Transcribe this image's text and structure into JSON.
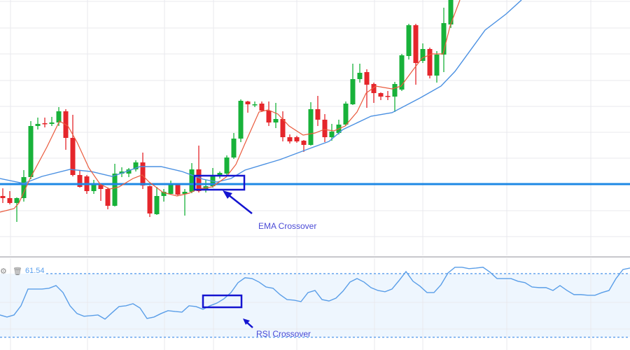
{
  "chart_data": [
    {
      "type": "candlestick",
      "title": "",
      "xlabel": "",
      "ylabel": "",
      "ylim": [
        35,
        400
      ],
      "grid": true,
      "colors": {
        "up": "#18b23a",
        "down": "#e5262b",
        "ema_fast": "#ea5a3c",
        "ema_slow": "#4a90e2",
        "support": "#1e88e5",
        "annotation": "#1414d0"
      },
      "candles": [
        [
          120,
          131,
          110,
          117
        ],
        [
          117,
          127,
          108,
          110
        ],
        [
          110,
          118,
          83,
          117
        ],
        [
          117,
          157,
          112,
          147
        ],
        [
          147,
          227,
          144,
          220
        ],
        [
          220,
          232,
          215,
          223
        ],
        [
          224,
          232,
          218,
          223
        ],
        [
          223,
          233,
          220,
          225
        ],
        [
          225,
          247,
          220,
          241
        ],
        [
          241,
          244,
          186,
          203
        ],
        [
          203,
          236,
          148,
          150
        ],
        [
          150,
          156,
          132,
          133
        ],
        [
          148,
          150,
          123,
          127
        ],
        [
          127,
          143,
          123,
          136
        ],
        [
          136,
          138,
          113,
          130
        ],
        [
          130,
          132,
          101,
          106
        ],
        [
          106,
          166,
          105,
          152
        ],
        [
          152,
          161,
          147,
          155
        ],
        [
          152,
          160,
          147,
          158
        ],
        [
          158,
          171,
          155,
          168
        ],
        [
          168,
          182,
          130,
          135
        ],
        [
          134,
          135,
          90,
          95
        ],
        [
          94,
          133,
          93,
          120
        ],
        [
          120,
          130,
          112,
          126
        ],
        [
          123,
          142,
          122,
          136
        ],
        [
          136,
          137,
          120,
          122
        ],
        [
          123,
          130,
          92,
          126
        ],
        [
          126,
          167,
          124,
          158
        ],
        [
          158,
          192,
          125,
          127
        ],
        [
          128,
          143,
          125,
          134
        ],
        [
          134,
          160,
          132,
          148
        ],
        [
          148,
          155,
          145,
          153
        ],
        [
          152,
          178,
          150,
          175
        ],
        [
          175,
          210,
          173,
          202
        ],
        [
          202,
          258,
          197,
          256
        ],
        [
          255,
          256,
          239,
          251
        ],
        [
          250,
          255,
          247,
          251
        ],
        [
          252,
          255,
          240,
          242
        ],
        [
          242,
          255,
          220,
          225
        ],
        [
          225,
          253,
          217,
          230
        ],
        [
          230,
          241,
          198,
          204
        ],
        [
          204,
          208,
          195,
          198
        ],
        [
          204,
          206,
          196,
          198
        ],
        [
          199,
          200,
          183,
          193
        ],
        [
          193,
          254,
          192,
          244
        ],
        [
          244,
          263,
          220,
          229
        ],
        [
          229,
          237,
          197,
          204
        ],
        [
          204,
          223,
          199,
          212
        ],
        [
          210,
          229,
          208,
          222
        ],
        [
          222,
          255,
          220,
          252
        ],
        [
          251,
          309,
          250,
          287
        ],
        [
          287,
          309,
          282,
          296
        ],
        [
          297,
          301,
          246,
          279
        ],
        [
          280,
          282,
          253,
          267
        ],
        [
          267,
          268,
          257,
          262
        ],
        [
          263,
          270,
          257,
          262
        ],
        [
          262,
          283,
          240,
          280
        ],
        [
          272,
          323,
          270,
          321
        ],
        [
          320,
          366,
          315,
          364
        ],
        [
          364,
          366,
          279,
          310
        ],
        [
          313,
          338,
          310,
          330
        ],
        [
          330,
          332,
          288,
          292
        ],
        [
          292,
          327,
          282,
          322
        ],
        [
          322,
          389,
          297,
          367
        ],
        [
          365,
          420,
          360,
          410
        ]
      ],
      "ema_fast": [
        [
          -0.4,
          97
        ],
        [
          1.6,
          102
        ],
        [
          2.3,
          110
        ],
        [
          3.9,
          145
        ],
        [
          6.3,
          190
        ],
        [
          8.1,
          227
        ],
        [
          9.3,
          220
        ],
        [
          10.6,
          197
        ],
        [
          12.3,
          160
        ],
        [
          13.9,
          137
        ],
        [
          15.3,
          130
        ],
        [
          16.6,
          133
        ],
        [
          18.6,
          145
        ],
        [
          19.9,
          150
        ],
        [
          20.9,
          140
        ],
        [
          22.9,
          125
        ],
        [
          24.9,
          120
        ],
        [
          26.6,
          124
        ],
        [
          27.9,
          130
        ],
        [
          29.9,
          133
        ],
        [
          31.9,
          147
        ],
        [
          33.3,
          165
        ],
        [
          34.6,
          195
        ],
        [
          36.6,
          240
        ],
        [
          37.9,
          243
        ],
        [
          39.3,
          237
        ],
        [
          40.9,
          220
        ],
        [
          42.9,
          207
        ],
        [
          44.6,
          210
        ],
        [
          45.9,
          215
        ],
        [
          47.3,
          213
        ],
        [
          48.9,
          220
        ],
        [
          50.6,
          240
        ],
        [
          51.9,
          267
        ],
        [
          53.3,
          277
        ],
        [
          55.6,
          273
        ],
        [
          56.9,
          277
        ],
        [
          58.6,
          300
        ],
        [
          59.9,
          317
        ],
        [
          61.3,
          323
        ],
        [
          62.9,
          323
        ],
        [
          63.9,
          363
        ],
        [
          65.3,
          400
        ]
      ],
      "ema_slow": [
        [
          -0.4,
          145
        ],
        [
          3,
          138
        ],
        [
          5.6,
          148
        ],
        [
          9.6,
          158
        ],
        [
          12.6,
          155
        ],
        [
          15.6,
          148
        ],
        [
          17.1,
          153
        ],
        [
          19.6,
          162
        ],
        [
          22.6,
          162
        ],
        [
          25.6,
          155
        ],
        [
          28.6,
          144
        ],
        [
          30.6,
          140
        ],
        [
          32.6,
          145
        ],
        [
          34.6,
          157
        ],
        [
          39.6,
          172
        ],
        [
          43.6,
          187
        ],
        [
          46.6,
          198
        ],
        [
          48.6,
          215
        ],
        [
          52.6,
          234
        ],
        [
          55.6,
          239
        ],
        [
          59.6,
          260
        ],
        [
          62.6,
          277
        ],
        [
          64.6,
          298
        ],
        [
          68.9,
          357
        ],
        [
          71.9,
          380
        ],
        [
          74.1,
          400
        ]
      ],
      "support_level": 137,
      "annotations": {
        "ema_box": {
          "bars": [
            27.4,
            34.5
          ],
          "prices": [
            129,
            149
          ]
        }
      }
    },
    {
      "type": "line",
      "title": "",
      "ylim": [
        22,
        80.5
      ],
      "levels": [
        70,
        30
      ],
      "level_label": "61.54",
      "values": [
        44.0,
        42.7,
        44.0,
        49.8,
        60.3,
        60.3,
        60.3,
        60.8,
        62.5,
        58.1,
        49.8,
        44.9,
        43.2,
        43.6,
        44.0,
        41.4,
        45.4,
        49.3,
        49.8,
        51.1,
        48.4,
        41.8,
        42.7,
        44.9,
        46.7,
        46.2,
        45.8,
        49.8,
        49.3,
        47.6,
        49.8,
        51.5,
        54.2,
        58.1,
        64.3,
        67.4,
        66.9,
        64.7,
        61.6,
        60.8,
        56.8,
        53.7,
        53.3,
        52.4,
        58.1,
        59.4,
        53.7,
        52.8,
        54.6,
        59.0,
        64.7,
        66.9,
        64.7,
        61.2,
        59.4,
        58.6,
        60.3,
        65.6,
        71.3,
        65.2,
        62.1,
        58.1,
        58.1,
        63.0,
        70.4,
        74.0,
        74.0,
        73.1,
        73.5,
        74.0,
        70.9,
        66.9,
        66.9,
        66.9,
        65.2,
        64.3,
        61.6,
        61.2,
        61.2,
        59.4,
        62.5,
        59.4,
        56.8,
        56.8,
        56.4,
        56.4,
        58.1,
        59.4,
        66.9,
        72.6,
        73.5
      ],
      "colors": {
        "line": "#5a9ee8",
        "band": "#eef6fe",
        "level": "#6aa6ee"
      }
    }
  ],
  "annotations": {
    "ema_label": "EMA Crossover",
    "rsi_label": "RSI Crossover"
  },
  "rsi_panel": {
    "settings_icon": "gear-icon",
    "delete_icon": "trash-icon",
    "value_label": "61.54"
  }
}
